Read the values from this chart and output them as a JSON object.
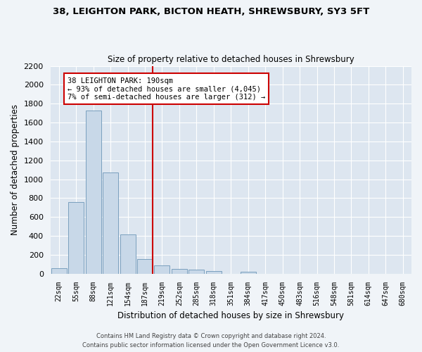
{
  "title1": "38, LEIGHTON PARK, BICTON HEATH, SHREWSBURY, SY3 5FT",
  "title2": "Size of property relative to detached houses in Shrewsbury",
  "xlabel": "Distribution of detached houses by size in Shrewsbury",
  "ylabel": "Number of detached properties",
  "bar_labels": [
    "22sqm",
    "55sqm",
    "88sqm",
    "121sqm",
    "154sqm",
    "187sqm",
    "219sqm",
    "252sqm",
    "285sqm",
    "318sqm",
    "351sqm",
    "384sqm",
    "417sqm",
    "450sqm",
    "483sqm",
    "516sqm",
    "548sqm",
    "581sqm",
    "614sqm",
    "647sqm",
    "680sqm"
  ],
  "bar_values": [
    55,
    760,
    1730,
    1070,
    415,
    155,
    85,
    50,
    42,
    30,
    0,
    20,
    0,
    0,
    0,
    0,
    0,
    0,
    0,
    0,
    0
  ],
  "bar_color": "#c8d8e8",
  "bar_edge_color": "#7aa0be",
  "annotation_text": "38 LEIGHTON PARK: 190sqm\n← 93% of detached houses are smaller (4,045)\n7% of semi-detached houses are larger (312) →",
  "annotation_box_color": "#ffffff",
  "annotation_box_edge_color": "#cc0000",
  "vline_color": "#cc0000",
  "ylim": [
    0,
    2200
  ],
  "yticks": [
    0,
    200,
    400,
    600,
    800,
    1000,
    1200,
    1400,
    1600,
    1800,
    2000,
    2200
  ],
  "background_color": "#dde6f0",
  "grid_color": "#ffffff",
  "fig_background": "#f0f4f8",
  "footer1": "Contains HM Land Registry data © Crown copyright and database right 2024.",
  "footer2": "Contains public sector information licensed under the Open Government Licence v3.0."
}
